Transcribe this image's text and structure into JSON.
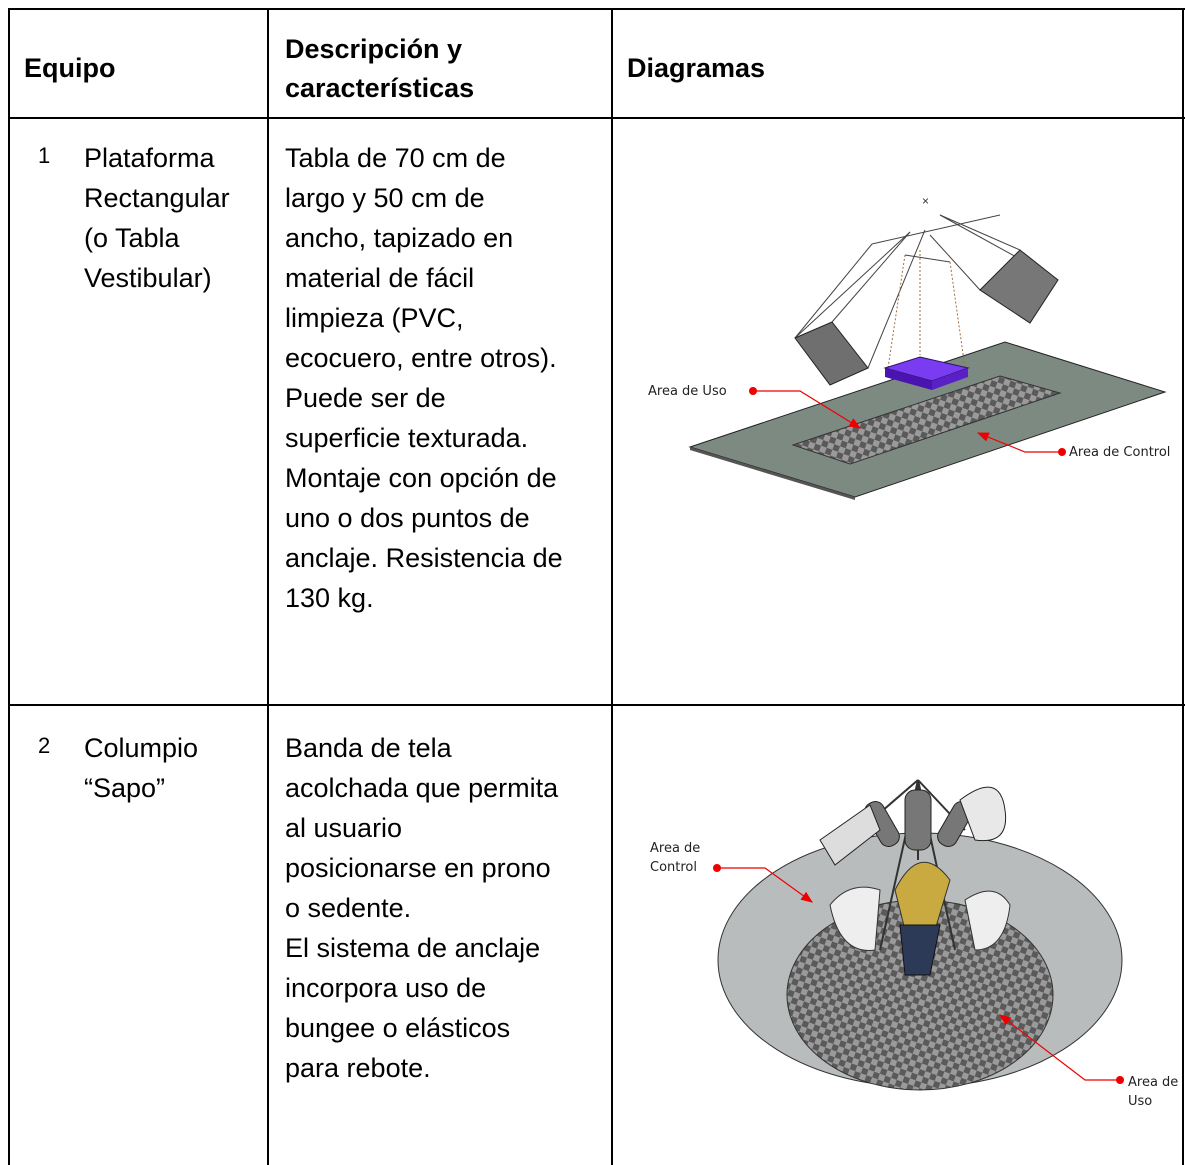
{
  "table": {
    "header": [
      "Equipo",
      "Descripción y características",
      "Diagramas"
    ],
    "rows": [
      {
        "number": "1",
        "name": [
          "Plataforma",
          "Rectangular",
          "(o Tabla",
          "Vestibular)"
        ],
        "description": [
          "Tabla de 70 cm de",
          "largo y 50 cm de",
          "ancho,  tapizado en",
          "material de fácil",
          "limpieza (PVC,",
          "ecocuero, entre otros).",
          "Puede ser de",
          "superficie texturada.",
          "Montaje con opción de",
          "uno o dos puntos de",
          "anclaje. Resistencia de",
          "130 kg."
        ],
        "diagram_labels": [
          "Area de Uso",
          "Area de Control"
        ]
      },
      {
        "number": "2",
        "name": [
          "Columpio",
          "“Sapo”"
        ],
        "description": [
          "Banda de tela",
          "acolchada que permita",
          "al usuario",
          "posicionarse en prono",
          "o sedente.",
          "El sistema de anclaje",
          "incorpora uso de",
          "bungee o elásticos",
          "para rebote."
        ],
        "diagram_labels": [
          "Area de Control",
          "Area de Uso"
        ]
      }
    ]
  }
}
